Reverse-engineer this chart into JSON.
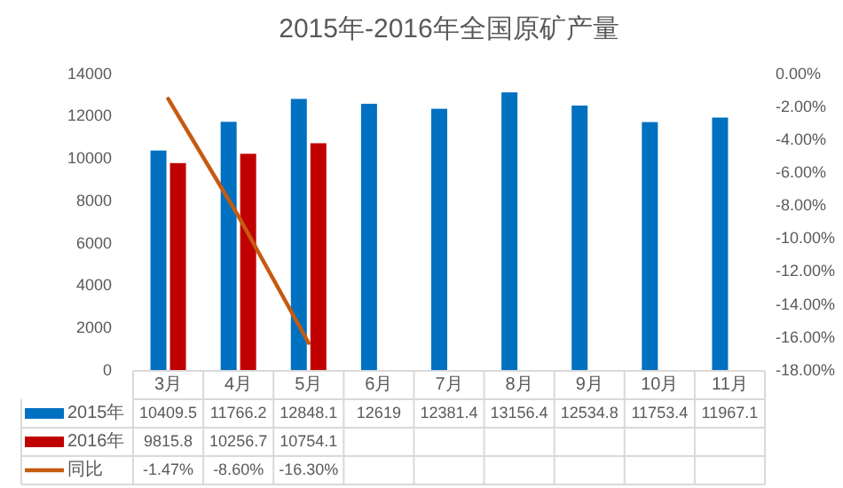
{
  "chart_data": {
    "type": "bar",
    "title": "2015年-2016年全国原矿产量",
    "categories": [
      "3月",
      "4月",
      "5月",
      "6月",
      "7月",
      "8月",
      "9月",
      "10月",
      "11月"
    ],
    "series": [
      {
        "name": "2015年",
        "color": "#0070c0",
        "values": [
          10409.5,
          11766.2,
          12848.1,
          12619,
          12381.4,
          13156.4,
          12534.8,
          11753.4,
          11967.1
        ]
      },
      {
        "name": "2016年",
        "color": "#c00000",
        "values": [
          9815.8,
          10256.7,
          10754.1,
          null,
          null,
          null,
          null,
          null,
          null
        ]
      },
      {
        "name": "同比",
        "type": "line",
        "axis": "y2",
        "color": "#c55a11",
        "values": [
          -1.47,
          -8.6,
          -16.3,
          null,
          null,
          null,
          null,
          null,
          null
        ],
        "value_labels": [
          "-1.47%",
          "-8.60%",
          "-16.30%",
          null,
          null,
          null,
          null,
          null,
          null
        ]
      }
    ],
    "ylim": [
      0,
      14000
    ],
    "yticks": [
      0,
      2000,
      4000,
      6000,
      8000,
      10000,
      12000,
      14000
    ],
    "y2lim": [
      -18,
      0
    ],
    "y2ticks": [
      {
        "value": 0,
        "label": "0.00%"
      },
      {
        "value": -2,
        "label": "-2.00%"
      },
      {
        "value": -4,
        "label": "-4.00%"
      },
      {
        "value": -6,
        "label": "-6.00%"
      },
      {
        "value": -8,
        "label": "-8.00%"
      },
      {
        "value": -10,
        "label": "-10.00%"
      },
      {
        "value": -12,
        "label": "-12.00%"
      },
      {
        "value": -14,
        "label": "-14.00%"
      },
      {
        "value": -16,
        "label": "-16.00%"
      },
      {
        "value": -18,
        "label": "-18.00%"
      }
    ],
    "data_labels": true,
    "legend": "bottom",
    "marker": "none"
  }
}
